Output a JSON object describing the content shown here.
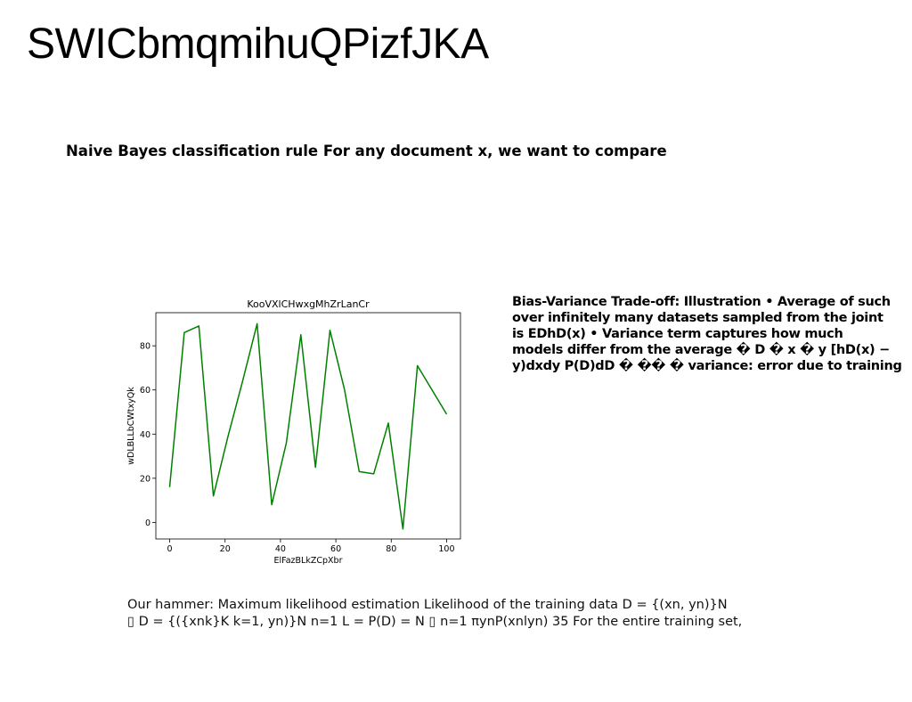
{
  "page": {
    "title": "SWICbmqmihuQPizfJKA",
    "subtitle": "Naive Bayes classification rule For any document x, we want to compare",
    "side_text_lines": [
      "Bias-Variance Trade-off: Illustration • Average of such",
      "over infinitely many datasets sampled from the joint",
      "is EDhD(x) • Variance term captures how much",
      "models differ from the average � D � x � y [hD(x) −",
      "y)dxdy P(D)dD � �� � variance: error due to training"
    ],
    "bottom_text_lines": [
      "Our hammer: Maximum likelihood estimation Likelihood of the training data D = {(xn, yn)}N",
      "▯ D = {({xnk}K k=1, yn)}N n=1 L = P(D) = N ▯ n=1 πynP(xnlyn) 35 For the entire training set,"
    ]
  },
  "chart_data": {
    "type": "line",
    "title": "KooVXlCHwxgMhZrLanCr",
    "xlabel": "ElFazBLkZCpXbr",
    "ylabel": "wDLBLLbCWtxyQk",
    "xlim": [
      -5,
      105
    ],
    "ylim": [
      -7.5,
      95
    ],
    "xticks": [
      0,
      20,
      40,
      60,
      80,
      100
    ],
    "yticks": [
      0,
      20,
      40,
      60,
      80
    ],
    "grid": false,
    "color": "#008000",
    "x": [
      0,
      5.26,
      10.53,
      15.79,
      21.05,
      26.32,
      31.58,
      36.84,
      42.11,
      47.37,
      52.63,
      57.89,
      63.16,
      68.42,
      73.68,
      78.95,
      84.21,
      89.47,
      94.74,
      100
    ],
    "y": [
      16,
      86,
      89,
      12,
      39,
      64,
      90,
      8,
      36,
      85,
      25,
      87,
      60,
      23,
      22,
      45,
      -3,
      71,
      60,
      49
    ]
  }
}
